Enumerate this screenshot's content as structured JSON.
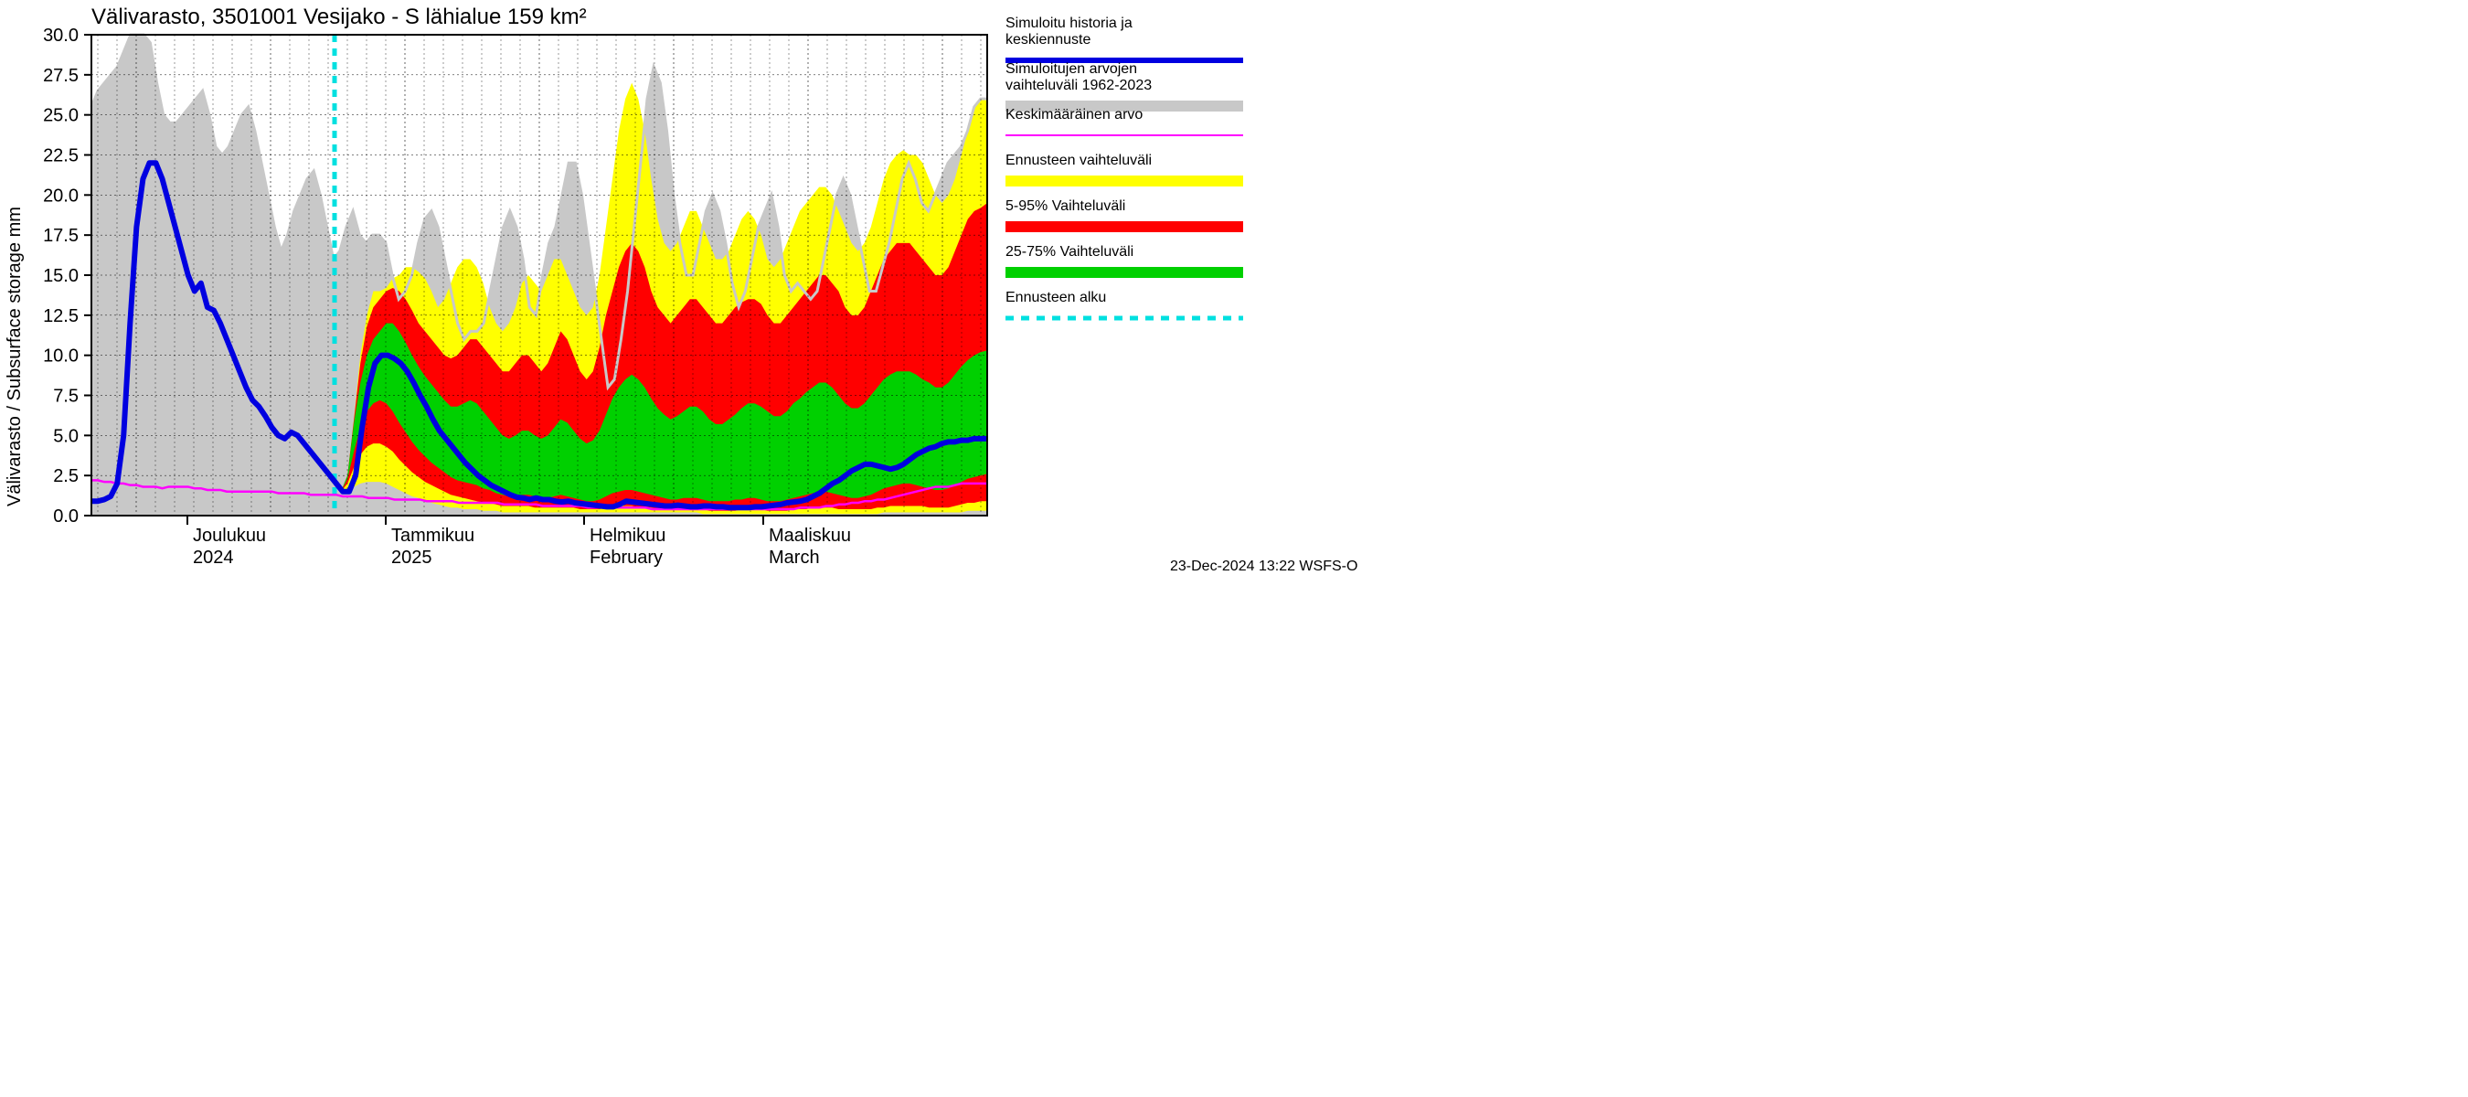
{
  "chart": {
    "type": "area-line-forecast",
    "title": "Välivarasto, 3501001 Vesijako - S lähialue 159 km²",
    "ylabel": "Välivarasto / Subsurface storage  mm",
    "footer": "23-Dec-2024 13:22 WSFS-O",
    "background_color": "#ffffff",
    "grid_color": "#000000",
    "ylim": [
      0,
      30
    ],
    "ytick_step": 2.5,
    "yticks": [
      0.0,
      2.5,
      5.0,
      7.5,
      10.0,
      12.5,
      15.0,
      17.5,
      20.0,
      22.5,
      25.0,
      27.5,
      30.0
    ],
    "x_days": 140,
    "forecast_start_day": 38,
    "month_markers": [
      {
        "day": 15,
        "label_fi": "Joulukuu",
        "label_en": "2024"
      },
      {
        "day": 46,
        "label_fi": "Tammikuu",
        "label_en": "2025"
      },
      {
        "day": 77,
        "label_fi": "Helmikuu",
        "label_en": "February"
      },
      {
        "day": 105,
        "label_fi": "Maaliskuu",
        "label_en": "March"
      }
    ],
    "colors": {
      "history_range": "#c8c8c8",
      "history_range_line": "#c8c8c8",
      "mean_line": "#ff00ff",
      "forecast_line": "#0000e0",
      "band_full": "#ffff00",
      "band_5_95": "#ff0000",
      "band_25_75": "#00d000",
      "forecast_start": "#00e0e0"
    },
    "legend": [
      {
        "label": "Simuloitu historia ja keskiennuste",
        "type": "line",
        "color": "#0000e0",
        "width": 6
      },
      {
        "label": "Simuloitujen arvojen vaihteluväli 1962-2023",
        "type": "area",
        "color": "#c8c8c8"
      },
      {
        "label": "Keskimääräinen arvo",
        "type": "line",
        "color": "#ff00ff",
        "width": 2
      },
      {
        "label": "Ennusteen vaihteluväli",
        "type": "area",
        "color": "#ffff00"
      },
      {
        "label": "5-95% Vaihteluväli",
        "type": "area",
        "color": "#ff0000"
      },
      {
        "label": "25-75% Vaihteluväli",
        "type": "area",
        "color": "#00d000"
      },
      {
        "label": "Ennusteen alku",
        "type": "dashed",
        "color": "#00e0e0",
        "width": 5
      }
    ],
    "series": {
      "history_hi": [
        25.5,
        26.5,
        27,
        27.5,
        28,
        29,
        30,
        30,
        30,
        29.5,
        27,
        25,
        24.5,
        24.5,
        25,
        25.5,
        26,
        26.5,
        25,
        23,
        22.5,
        23,
        24,
        25,
        25.5,
        24,
        22,
        20,
        18,
        16.5,
        17.5,
        19,
        20,
        21,
        21.5,
        20,
        18,
        16,
        16.5,
        18,
        19,
        17.5,
        17,
        17.5,
        17.5,
        17,
        15,
        13.5,
        14,
        15,
        17,
        18.5,
        19,
        18,
        16,
        14,
        12,
        11,
        11.5,
        11.5,
        12,
        14,
        16,
        18,
        19,
        18,
        16,
        13,
        12.5,
        15,
        17,
        18,
        20,
        22,
        22,
        20,
        17,
        14,
        11,
        8,
        8.5,
        11,
        14,
        18,
        22,
        26,
        28,
        27,
        24,
        20,
        17,
        15,
        15,
        17,
        19,
        20,
        19,
        17,
        14.5,
        13,
        14,
        16,
        18,
        19,
        20,
        18,
        15,
        14,
        14.5,
        14,
        13.5,
        14,
        16,
        18,
        20,
        21,
        20,
        18,
        16,
        14,
        14,
        15.5,
        17,
        19,
        21,
        22,
        21,
        19.5,
        19,
        20,
        21,
        22,
        22.5,
        23,
        24,
        25.5,
        26,
        26
      ],
      "mean": [
        2.2,
        2.2,
        2.1,
        2.1,
        2.0,
        2.0,
        1.9,
        1.9,
        1.8,
        1.8,
        1.8,
        1.7,
        1.8,
        1.8,
        1.8,
        1.8,
        1.7,
        1.7,
        1.6,
        1.6,
        1.6,
        1.5,
        1.5,
        1.5,
        1.5,
        1.5,
        1.5,
        1.5,
        1.5,
        1.4,
        1.4,
        1.4,
        1.4,
        1.4,
        1.3,
        1.3,
        1.3,
        1.3,
        1.3,
        1.2,
        1.2,
        1.2,
        1.2,
        1.1,
        1.1,
        1.1,
        1.1,
        1.0,
        1.0,
        1.0,
        1.0,
        1.0,
        0.9,
        0.9,
        0.9,
        0.9,
        0.9,
        0.8,
        0.8,
        0.8,
        0.8,
        0.8,
        0.8,
        0.8,
        0.7,
        0.7,
        0.7,
        0.7,
        0.7,
        0.7,
        0.6,
        0.6,
        0.6,
        0.6,
        0.6,
        0.6,
        0.6,
        0.5,
        0.5,
        0.5,
        0.5,
        0.5,
        0.5,
        0.5,
        0.5,
        0.5,
        0.5,
        0.4,
        0.4,
        0.4,
        0.4,
        0.4,
        0.4,
        0.4,
        0.4,
        0.4,
        0.4,
        0.4,
        0.4,
        0.4,
        0.4,
        0.4,
        0.4,
        0.4,
        0.4,
        0.4,
        0.4,
        0.4,
        0.4,
        0.4,
        0.5,
        0.5,
        0.5,
        0.5,
        0.6,
        0.6,
        0.7,
        0.7,
        0.8,
        0.8,
        0.9,
        0.9,
        1.0,
        1.0,
        1.1,
        1.2,
        1.3,
        1.4,
        1.5,
        1.6,
        1.7,
        1.8,
        1.8,
        1.8,
        1.9,
        2.0,
        2.0,
        2.0,
        2.0,
        2.0
      ],
      "sim_forecast": [
        0.9,
        0.9,
        1.0,
        1.2,
        2.0,
        5.0,
        12.0,
        18.0,
        21.0,
        22.0,
        22.0,
        21.0,
        19.5,
        18.0,
        16.5,
        15.0,
        14.0,
        14.5,
        13.0,
        12.8,
        12.0,
        11.0,
        10.0,
        9.0,
        8.0,
        7.2,
        6.8,
        6.2,
        5.5,
        5.0,
        4.8,
        5.2,
        5.0,
        4.5,
        4.0,
        3.5,
        3.0,
        2.5,
        2.0,
        1.5,
        1.5,
        2.5,
        5.5,
        8.0,
        9.5,
        10.0,
        10.0,
        9.8,
        9.5,
        9.0,
        8.3,
        7.5,
        6.8,
        6.0,
        5.3,
        4.8,
        4.3,
        3.8,
        3.3,
        2.9,
        2.5,
        2.2,
        1.9,
        1.7,
        1.5,
        1.3,
        1.15,
        1.1,
        1.0,
        1.1,
        1.0,
        1.0,
        0.9,
        0.85,
        0.9,
        0.8,
        0.75,
        0.7,
        0.65,
        0.6,
        0.55,
        0.55,
        0.7,
        0.9,
        0.85,
        0.8,
        0.75,
        0.7,
        0.65,
        0.6,
        0.6,
        0.65,
        0.6,
        0.55,
        0.55,
        0.6,
        0.6,
        0.55,
        0.55,
        0.5,
        0.5,
        0.5,
        0.5,
        0.55,
        0.55,
        0.6,
        0.65,
        0.7,
        0.8,
        0.85,
        0.9,
        1.0,
        1.2,
        1.4,
        1.7,
        2.0,
        2.2,
        2.5,
        2.8,
        3.0,
        3.2,
        3.2,
        3.1,
        3.0,
        2.9,
        3.0,
        3.2,
        3.5,
        3.8,
        4.0,
        4.2,
        4.3,
        4.5,
        4.6,
        4.6,
        4.7,
        4.7,
        4.8,
        4.8,
        4.8
      ],
      "band_full_hi": [
        1.5,
        1.5,
        2.5,
        6.0,
        10.0,
        12.5,
        14.0,
        14.0,
        14.2,
        14.8,
        15.0,
        15.5,
        15.5,
        15.2,
        14.8,
        14.0,
        13.0,
        13.5,
        14.5,
        15.5,
        16.0,
        16.0,
        15.5,
        14.5,
        13.0,
        12.0,
        11.5,
        12.0,
        13.0,
        14.5,
        15.0,
        14.5,
        14.0,
        15.0,
        16.0,
        16.0,
        15.0,
        14.0,
        13.0,
        12.5,
        13.0,
        15.0,
        18.0,
        21.0,
        24.0,
        26.0,
        27.0,
        26.0,
        24.0,
        21.0,
        18.5,
        17.0,
        16.5,
        17.0,
        18.0,
        19.0,
        19.0,
        18.0,
        17.0,
        16.0,
        16.0,
        16.5,
        17.5,
        18.5,
        19.0,
        18.5,
        17.5,
        16.0,
        15.5,
        16.0,
        17.0,
        18.0,
        19.0,
        19.5,
        20.0,
        20.5,
        20.5,
        20.0,
        19.0,
        18.0,
        17.0,
        16.5,
        17.0,
        18.0,
        19.5,
        21.0,
        22.0,
        22.5,
        22.8,
        22.5,
        22.5,
        22.0,
        21.0,
        20.0,
        19.5,
        20.0,
        21.0,
        22.5,
        24.0,
        25.5,
        26.0,
        26.0
      ],
      "band_5_95_hi": [
        1.5,
        1.5,
        2.5,
        6.0,
        9.5,
        11.8,
        13.0,
        13.5,
        14.0,
        14.2,
        14.0,
        13.5,
        12.8,
        12.0,
        11.5,
        11.0,
        10.5,
        10.0,
        9.8,
        10.0,
        10.5,
        11.0,
        11.0,
        10.5,
        10.0,
        9.5,
        9.0,
        9.0,
        9.5,
        10.0,
        10.0,
        9.5,
        9.0,
        9.5,
        10.5,
        11.5,
        11.0,
        10.0,
        9.0,
        8.5,
        9.0,
        10.5,
        12.5,
        14.0,
        15.5,
        16.5,
        17.0,
        16.5,
        15.5,
        14.0,
        13.0,
        12.5,
        12.0,
        12.5,
        13.0,
        13.5,
        13.5,
        13.0,
        12.5,
        12.0,
        12.0,
        12.5,
        13.0,
        13.3,
        13.5,
        13.5,
        13.2,
        12.5,
        12.0,
        12.0,
        12.5,
        13.0,
        13.5,
        14.0,
        14.5,
        15.0,
        15.0,
        14.5,
        14.0,
        13.0,
        12.5,
        12.5,
        13.0,
        14.0,
        15.0,
        16.0,
        16.5,
        17.0,
        17.0,
        17.0,
        16.5,
        16.0,
        15.5,
        15.0,
        15.0,
        15.5,
        16.5,
        17.5,
        18.5,
        19.0,
        19.2,
        19.5
      ],
      "band_25_75_hi": [
        1.5,
        1.5,
        2.5,
        5.8,
        8.3,
        10.0,
        11.0,
        11.5,
        12.0,
        12.0,
        11.5,
        10.8,
        10.0,
        9.3,
        8.7,
        8.2,
        7.7,
        7.2,
        6.8,
        6.8,
        7.0,
        7.2,
        7.0,
        6.5,
        6.0,
        5.5,
        5.0,
        4.8,
        5.0,
        5.3,
        5.3,
        5.0,
        4.8,
        5.0,
        5.5,
        6.0,
        5.8,
        5.3,
        4.8,
        4.5,
        4.7,
        5.3,
        6.3,
        7.3,
        8.0,
        8.5,
        8.8,
        8.5,
        8.0,
        7.3,
        6.7,
        6.3,
        6.0,
        6.2,
        6.5,
        6.8,
        6.8,
        6.5,
        6.0,
        5.7,
        5.7,
        6.0,
        6.3,
        6.7,
        7.0,
        7.0,
        6.8,
        6.5,
        6.2,
        6.2,
        6.5,
        7.0,
        7.3,
        7.7,
        8.0,
        8.3,
        8.3,
        8.0,
        7.5,
        7.0,
        6.7,
        6.7,
        7.0,
        7.5,
        8.0,
        8.5,
        8.8,
        9.0,
        9.0,
        9.0,
        8.8,
        8.5,
        8.3,
        8.0,
        8.0,
        8.3,
        8.8,
        9.3,
        9.7,
        10.0,
        10.2,
        10.3
      ],
      "band_25_75_lo": [
        1.5,
        1.5,
        2.3,
        4.0,
        5.5,
        6.5,
        7.0,
        7.2,
        7.0,
        6.5,
        5.8,
        5.2,
        4.6,
        4.1,
        3.7,
        3.3,
        3.0,
        2.7,
        2.4,
        2.2,
        2.1,
        2.0,
        1.9,
        1.7,
        1.6,
        1.4,
        1.3,
        1.2,
        1.2,
        1.3,
        1.3,
        1.2,
        1.1,
        1.1,
        1.2,
        1.3,
        1.2,
        1.1,
        1.0,
        0.9,
        0.9,
        1.0,
        1.2,
        1.4,
        1.5,
        1.6,
        1.6,
        1.5,
        1.4,
        1.3,
        1.2,
        1.1,
        1.0,
        1.0,
        1.1,
        1.1,
        1.1,
        1.0,
        0.9,
        0.9,
        0.9,
        0.9,
        1.0,
        1.0,
        1.1,
        1.1,
        1.0,
        0.9,
        0.9,
        0.9,
        1.0,
        1.1,
        1.2,
        1.3,
        1.4,
        1.5,
        1.5,
        1.4,
        1.3,
        1.2,
        1.1,
        1.1,
        1.2,
        1.3,
        1.5,
        1.7,
        1.8,
        1.9,
        2.0,
        2.0,
        1.9,
        1.8,
        1.7,
        1.6,
        1.6,
        1.7,
        1.9,
        2.1,
        2.3,
        2.4,
        2.5,
        2.6
      ],
      "band_5_95_lo": [
        1.5,
        1.5,
        2.0,
        3.0,
        3.8,
        4.3,
        4.5,
        4.5,
        4.3,
        4.0,
        3.5,
        3.1,
        2.7,
        2.4,
        2.1,
        1.9,
        1.7,
        1.5,
        1.3,
        1.2,
        1.1,
        1.0,
        0.9,
        0.8,
        0.8,
        0.7,
        0.6,
        0.6,
        0.6,
        0.6,
        0.6,
        0.5,
        0.5,
        0.5,
        0.5,
        0.5,
        0.5,
        0.5,
        0.4,
        0.4,
        0.4,
        0.4,
        0.5,
        0.5,
        0.6,
        0.6,
        0.6,
        0.5,
        0.5,
        0.5,
        0.4,
        0.4,
        0.4,
        0.4,
        0.4,
        0.4,
        0.4,
        0.4,
        0.3,
        0.3,
        0.3,
        0.3,
        0.3,
        0.4,
        0.4,
        0.4,
        0.4,
        0.3,
        0.3,
        0.3,
        0.3,
        0.4,
        0.4,
        0.4,
        0.5,
        0.5,
        0.5,
        0.5,
        0.4,
        0.4,
        0.4,
        0.4,
        0.4,
        0.4,
        0.5,
        0.5,
        0.6,
        0.6,
        0.6,
        0.6,
        0.6,
        0.6,
        0.5,
        0.5,
        0.5,
        0.5,
        0.6,
        0.7,
        0.8,
        0.8,
        0.9,
        0.9
      ],
      "band_full_lo": [
        1.5,
        1.5,
        1.6,
        1.8,
        2.0,
        2.1,
        2.1,
        2.1,
        2.0,
        1.8,
        1.6,
        1.4,
        1.2,
        1.1,
        0.9,
        0.8,
        0.7,
        0.6,
        0.5,
        0.5,
        0.4,
        0.4,
        0.4,
        0.3,
        0.3,
        0.3,
        0.2,
        0.2,
        0.2,
        0.2,
        0.2,
        0.2,
        0.2,
        0.2,
        0.2,
        0.2,
        0.2,
        0.2,
        0.2,
        0.2,
        0.2,
        0.2,
        0.2,
        0.2,
        0.2,
        0.2,
        0.2,
        0.2,
        0.2,
        0.2,
        0.2,
        0.2,
        0.2,
        0.2,
        0.2,
        0.2,
        0.2,
        0.1,
        0.1,
        0.1,
        0.1,
        0.1,
        0.1,
        0.1,
        0.1,
        0.1,
        0.1,
        0.1,
        0.1,
        0.1,
        0.1,
        0.1,
        0.1,
        0.1,
        0.1,
        0.1,
        0.1,
        0.1,
        0.1,
        0.1,
        0.1,
        0.1,
        0.1,
        0.1,
        0.1,
        0.2,
        0.2,
        0.2,
        0.2,
        0.2,
        0.2,
        0.2,
        0.2,
        0.2,
        0.2,
        0.2,
        0.2,
        0.2,
        0.3,
        0.3,
        0.3,
        0.3
      ]
    }
  }
}
